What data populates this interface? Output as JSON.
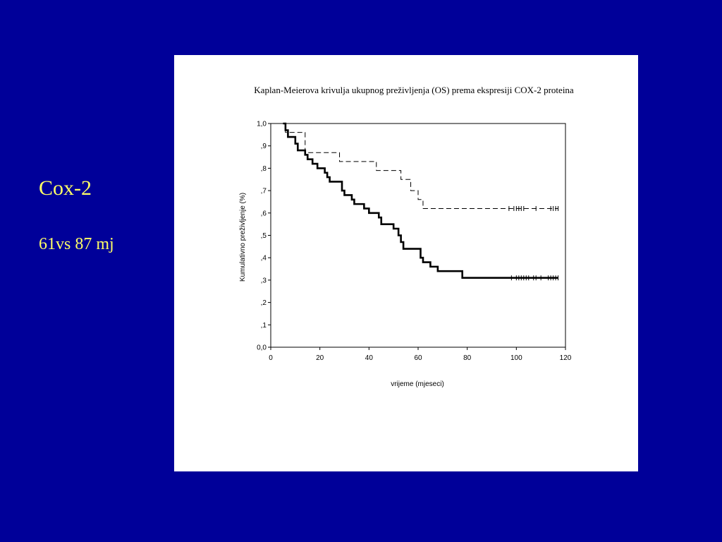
{
  "slide": {
    "title": "Cox-2",
    "subtitle": "61vs 87 mj",
    "background_color": "#000099",
    "text_color": "#ffff66"
  },
  "chart_data": {
    "type": "line",
    "title": "Kaplan-Meierova krivulja ukupnog preživljenja (OS) prema ekspresiji COX-2 proteina",
    "xlabel": "vrijeme (mjeseci)",
    "ylabel": "Kumulativno preživljenje (%)",
    "xlim": [
      0,
      120
    ],
    "ylim": [
      0,
      1
    ],
    "x_ticks": [
      0,
      20,
      40,
      60,
      80,
      100,
      120
    ],
    "x_tick_labels": [
      "0",
      "20",
      "40",
      "60",
      "80",
      "100",
      "120"
    ],
    "y_ticks": [
      0,
      0.1,
      0.2,
      0.3,
      0.4,
      0.5,
      0.6,
      0.7,
      0.8,
      0.9,
      1.0
    ],
    "y_tick_labels": [
      "0,0",
      ",1",
      ",2",
      ",3",
      ",4",
      ",5",
      ",6",
      ",7",
      ",8",
      ",9",
      "1,0"
    ],
    "grid": false,
    "series": [
      {
        "style": "dashed",
        "color": "#000000",
        "steps": [
          [
            5,
            1.0
          ],
          [
            6,
            0.96
          ],
          [
            14,
            0.87
          ],
          [
            28,
            0.83
          ],
          [
            43,
            0.79
          ],
          [
            53,
            0.75
          ],
          [
            57,
            0.7
          ],
          [
            60,
            0.66
          ],
          [
            62,
            0.62
          ]
        ],
        "end_x": 117,
        "censored": [
          97,
          99,
          100,
          101,
          102,
          103,
          108,
          114,
          115,
          116,
          117
        ]
      },
      {
        "style": "solid",
        "color": "#000000",
        "steps": [
          [
            5,
            1.0
          ],
          [
            6,
            0.97
          ],
          [
            7,
            0.94
          ],
          [
            10,
            0.91
          ],
          [
            11,
            0.88
          ],
          [
            14,
            0.86
          ],
          [
            15,
            0.84
          ],
          [
            17,
            0.82
          ],
          [
            19,
            0.8
          ],
          [
            22,
            0.78
          ],
          [
            23,
            0.76
          ],
          [
            24,
            0.74
          ],
          [
            29,
            0.7
          ],
          [
            30,
            0.68
          ],
          [
            33,
            0.66
          ],
          [
            34,
            0.64
          ],
          [
            38,
            0.62
          ],
          [
            40,
            0.6
          ],
          [
            44,
            0.58
          ],
          [
            45,
            0.55
          ],
          [
            50,
            0.53
          ],
          [
            52,
            0.5
          ],
          [
            53,
            0.47
          ],
          [
            54,
            0.44
          ],
          [
            61,
            0.4
          ],
          [
            62,
            0.38
          ],
          [
            65,
            0.36
          ],
          [
            68,
            0.34
          ],
          [
            78,
            0.31
          ]
        ],
        "end_x": 117,
        "censored": [
          98,
          100,
          101,
          102,
          103,
          104,
          105,
          107,
          108,
          110,
          113,
          114,
          115,
          116,
          117
        ]
      }
    ]
  }
}
